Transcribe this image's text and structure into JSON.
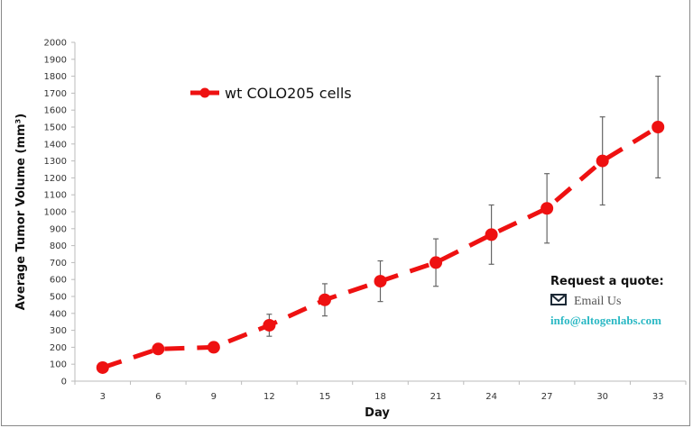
{
  "chart_data": {
    "type": "line",
    "xlabel": "Day",
    "ylabel": "Average Tumor Volume (mm³)",
    "categories": [
      "3",
      "6",
      "9",
      "12",
      "15",
      "18",
      "21",
      "24",
      "27",
      "30",
      "33"
    ],
    "ylim": [
      0,
      2000
    ],
    "yticks": [
      0,
      100,
      200,
      300,
      400,
      500,
      600,
      700,
      800,
      900,
      1000,
      1100,
      1200,
      1300,
      1400,
      1500,
      1600,
      1700,
      1800,
      1900,
      2000
    ],
    "grid": false,
    "legend_position": "top-left",
    "series": [
      {
        "name": "wt COLO205 cells",
        "color": "#ee1111",
        "line_style": "dashed",
        "values": [
          80,
          190,
          200,
          330,
          480,
          590,
          700,
          865,
          1020,
          1300,
          1500
        ],
        "error": [
          20,
          30,
          30,
          65,
          95,
          120,
          140,
          175,
          205,
          260,
          300
        ]
      }
    ]
  },
  "quote": {
    "title": "Request a quote:",
    "email_label": "Email Us",
    "email_address": "info@altogenlabs.com",
    "icon": "envelope-icon",
    "link_color": "#2bb8c4"
  }
}
